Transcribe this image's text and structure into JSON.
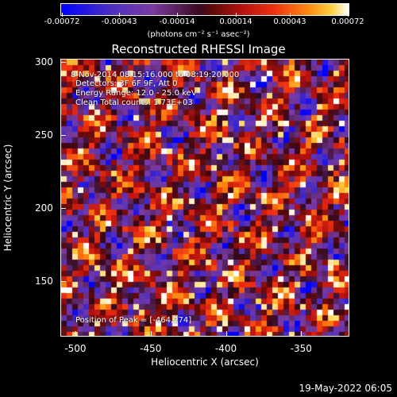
{
  "colorbar": {
    "ticks": [
      "-0.00072",
      "-0.00043",
      "-0.00014",
      "0.00014",
      "0.00043",
      "0.00072"
    ],
    "unit_label": "(photons cm⁻² s⁻¹ asec⁻²)"
  },
  "chart_data": {
    "type": "heatmap",
    "title": "Reconstructed RHESSI Image",
    "xlabel": "Heliocentric X (arcsec)",
    "ylabel": "Heliocentric Y (arcsec)",
    "xticks": [
      "-500",
      "-450",
      "-400",
      "-350"
    ],
    "yticks": [
      "300",
      "250",
      "200",
      "150"
    ],
    "xlim": [
      -510,
      -318
    ],
    "ylim": [
      112,
      302
    ],
    "clim": [
      -0.00072,
      0.00072
    ],
    "colormap": "blue-purple-black-red-yellow-white",
    "grid": false,
    "annotations": {
      "time": "8-Nov-2014 08:15:16.000 to 08:19:20.000",
      "detectors": "Detectors: 3F 6F 9F, Att 0",
      "energy": "Energy Range: 12.0 - 25.0 keV",
      "clean": "Clean     Total counts: 1.73E+03",
      "peak": "Position of Peak = [-464,274]"
    }
  },
  "datestamp": "19-May-2022 06:05"
}
